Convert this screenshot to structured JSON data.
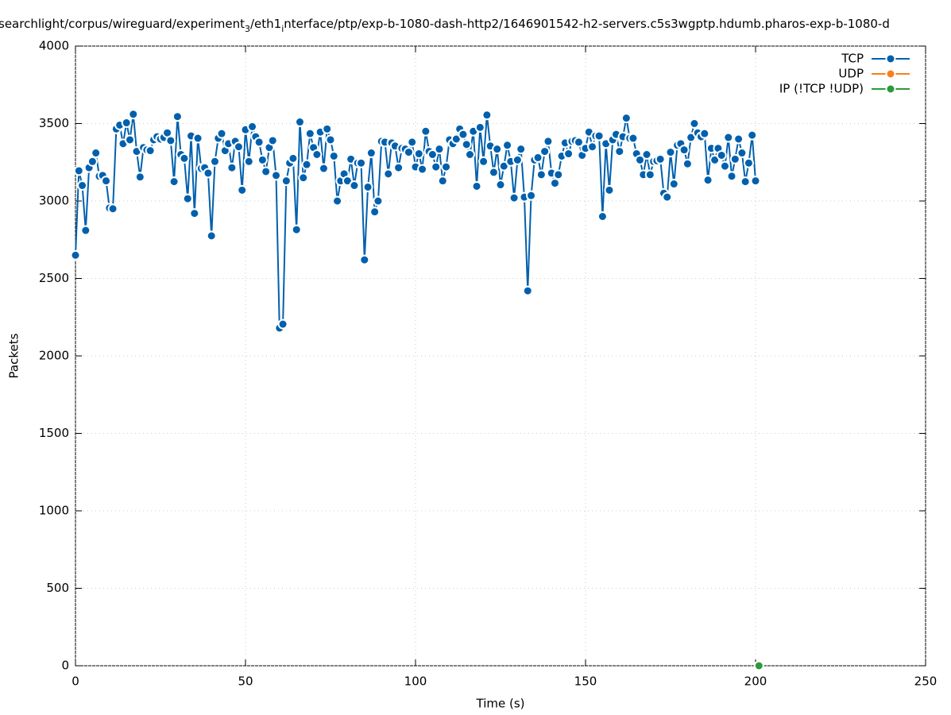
{
  "chart_data": {
    "type": "line",
    "title": [
      "searchlight/corpus/wireguard/experiment",
      "3",
      "/eth1",
      "i",
      "nterface/ptp/exp-b-1080-dash-http2/1646901542-h2-servers.c5s3wgptp.hdumb.pharos-exp-b-1080-d"
    ],
    "x_label": "Time (s)",
    "y_label": "Packets",
    "xlim": [
      0,
      250
    ],
    "xticks": [
      0,
      50,
      100,
      150,
      200,
      250
    ],
    "ylim": [
      0,
      4000
    ],
    "yticks": [
      0,
      500,
      1000,
      1500,
      2000,
      2500,
      3000,
      3500,
      4000
    ],
    "grid": true,
    "legend": "top-right",
    "series": [
      {
        "name": "TCP",
        "color": "#0060ad",
        "x": [
          0,
          1,
          2,
          3,
          4,
          5,
          6,
          7,
          8,
          9,
          10,
          11,
          12,
          13,
          14,
          15,
          16,
          17,
          18,
          19,
          20,
          21,
          22,
          23,
          24,
          25,
          26,
          27,
          28,
          29,
          30,
          31,
          32,
          33,
          34,
          35,
          36,
          37,
          38,
          39,
          40,
          41,
          42,
          43,
          44,
          45,
          46,
          47,
          48,
          49,
          50,
          51,
          52,
          53,
          54,
          55,
          56,
          57,
          58,
          59,
          60,
          61,
          62,
          63,
          64,
          65,
          66,
          67,
          68,
          69,
          70,
          71,
          72,
          73,
          74,
          75,
          76,
          77,
          78,
          79,
          80,
          81,
          82,
          83,
          84,
          85,
          86,
          87,
          88,
          89,
          90,
          91,
          92,
          93,
          94,
          95,
          96,
          97,
          98,
          99,
          100,
          101,
          102,
          103,
          104,
          105,
          106,
          107,
          108,
          109,
          110,
          111,
          112,
          113,
          114,
          115,
          116,
          117,
          118,
          119,
          120,
          121,
          122,
          123,
          124,
          125,
          126,
          127,
          128,
          129,
          130,
          131,
          132,
          133,
          134,
          135,
          136,
          137,
          138,
          139,
          140,
          141,
          142,
          143,
          144,
          145,
          146,
          147,
          148,
          149,
          150,
          151,
          152,
          153,
          154,
          155,
          156,
          157,
          158,
          159,
          160,
          161,
          162,
          163,
          164,
          165,
          166,
          167,
          168,
          169,
          170,
          171,
          172,
          173,
          174,
          175,
          176,
          177,
          178,
          179,
          180,
          181,
          182,
          183,
          184,
          185,
          186,
          187,
          188,
          189,
          190,
          191,
          192,
          193,
          194,
          195,
          196,
          197,
          198,
          199,
          200
        ],
        "values": [
          2650,
          3195,
          3100,
          2810,
          3215,
          3255,
          3310,
          3160,
          3165,
          3130,
          2955,
          2950,
          3465,
          3490,
          3370,
          3505,
          3395,
          3560,
          3320,
          3155,
          3345,
          3330,
          3325,
          3395,
          3415,
          3400,
          3410,
          3440,
          3390,
          3125,
          3545,
          3300,
          3275,
          3015,
          3420,
          2920,
          3405,
          3210,
          3215,
          3180,
          2775,
          3255,
          3405,
          3435,
          3325,
          3370,
          3215,
          3385,
          3350,
          3070,
          3460,
          3255,
          3480,
          3415,
          3380,
          3265,
          3190,
          3345,
          3390,
          3165,
          2180,
          2205,
          3130,
          3245,
          3275,
          2815,
          3510,
          3150,
          3235,
          3435,
          3345,
          3300,
          3445,
          3210,
          3465,
          3395,
          3290,
          3000,
          3130,
          3175,
          3130,
          3270,
          3100,
          3245,
          3245,
          2620,
          3090,
          3310,
          2930,
          3000,
          3385,
          3380,
          3175,
          3375,
          3355,
          3215,
          3340,
          3335,
          3315,
          3380,
          3220,
          3305,
          3205,
          3450,
          3320,
          3300,
          3220,
          3335,
          3130,
          3220,
          3395,
          3370,
          3400,
          3465,
          3430,
          3365,
          3300,
          3450,
          3095,
          3475,
          3255,
          3555,
          3355,
          3185,
          3335,
          3105,
          3225,
          3360,
          3255,
          3020,
          3265,
          3335,
          3025,
          2420,
          3035,
          3265,
          3280,
          3170,
          3320,
          3385,
          3180,
          3115,
          3170,
          3290,
          3375,
          3305,
          3385,
          3390,
          3380,
          3295,
          3340,
          3445,
          3350,
          3420,
          3420,
          2900,
          3370,
          3070,
          3395,
          3430,
          3320,
          3415,
          3535,
          3405,
          3405,
          3305,
          3265,
          3170,
          3300,
          3170,
          3255,
          3260,
          3270,
          3050,
          3025,
          3315,
          3110,
          3360,
          3370,
          3330,
          3240,
          3410,
          3500,
          3440,
          3415,
          3435,
          3135,
          3340,
          3265,
          3340,
          3295,
          3225,
          3410,
          3160,
          3270,
          3400,
          3310,
          3125,
          3245,
          3425,
          3130
        ]
      },
      {
        "name": "UDP",
        "color": "#f7801e",
        "x": [],
        "values": []
      },
      {
        "name": "IP (!TCP  !UDP)",
        "color": "#2a9a3a",
        "x": [
          201
        ],
        "values": [
          0
        ]
      }
    ]
  }
}
